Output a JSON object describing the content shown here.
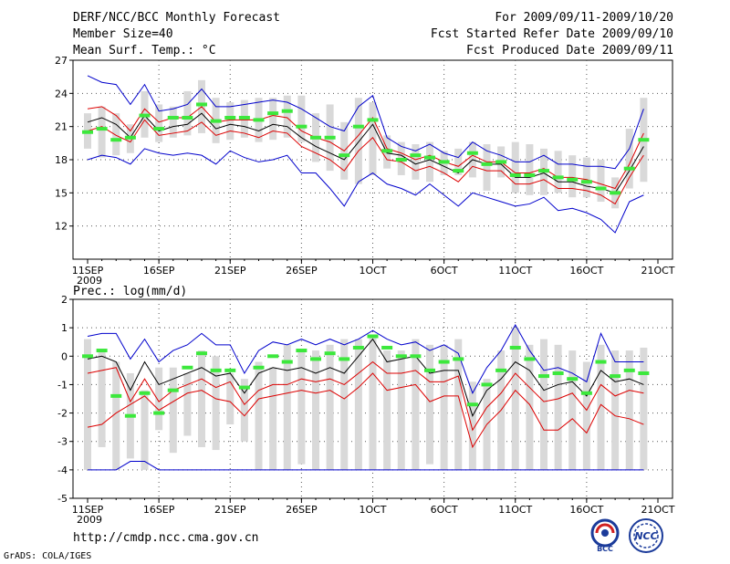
{
  "header": {
    "title": "DERF/NCC/BCC Monthly Forecast",
    "member_size": "Member Size=40",
    "variable": "Mean Surf. Temp.: °C",
    "forecast_period": "For 2009/09/11-2009/10/20",
    "started_date": "Fcst Started Refer Date 2009/09/10",
    "produced_date": "Fcst Produced Date 2009/09/11"
  },
  "footer": {
    "url": "http://cmdp.ncc.cma.gov.cn",
    "credit": "GrADS: COLA/IGES",
    "logo_bcc": "BCC",
    "logo_ncc": "NCC"
  },
  "colors": {
    "box": "#d9d9d9",
    "mean": "#3ce83c",
    "max": "#0000cc",
    "min_line": "#dd0000",
    "median": "#000000",
    "grid": "#555555"
  },
  "chart_data": [
    {
      "type": "box",
      "title": "Mean Surf. Temp.: °C",
      "ylim": [
        9,
        27
      ],
      "yticks": [
        12,
        15,
        18,
        21,
        24,
        27
      ],
      "xlabels": [
        "11SEP",
        "16SEP",
        "21SEP",
        "26SEP",
        "1OCT",
        "6OCT",
        "11OCT",
        "16OCT",
        "21OCT"
      ],
      "xlabel_year": "2009",
      "days": [
        1,
        2,
        3,
        4,
        5,
        6,
        7,
        8,
        9,
        10,
        11,
        12,
        13,
        14,
        15,
        16,
        17,
        18,
        19,
        20,
        21,
        22,
        23,
        24,
        25,
        26,
        27,
        28,
        29,
        30,
        31,
        32,
        33,
        34,
        35,
        36,
        37,
        38,
        39,
        40
      ],
      "box_low": [
        19.0,
        18.2,
        18.4,
        18.6,
        20.0,
        19.6,
        20.0,
        20.2,
        20.4,
        19.5,
        19.8,
        20.0,
        19.6,
        19.8,
        20.0,
        19.6,
        17.8,
        17.0,
        16.2,
        15.8,
        16.6,
        17.2,
        16.6,
        16.2,
        16.0,
        16.6,
        16.6,
        16.4,
        15.2,
        16.4,
        15.0,
        14.8,
        14.8,
        15.0,
        14.6,
        14.6,
        14.2,
        13.6,
        15.4,
        16.0
      ],
      "box_high": [
        22.2,
        22.8,
        22.2,
        21.2,
        24.2,
        23.0,
        22.8,
        24.2,
        25.2,
        23.6,
        23.2,
        23.4,
        23.6,
        23.6,
        23.8,
        23.8,
        22.2,
        23.0,
        21.4,
        23.6,
        23.2,
        20.2,
        19.6,
        19.4,
        19.6,
        18.8,
        19.0,
        19.6,
        19.4,
        19.2,
        19.6,
        19.4,
        19.0,
        18.8,
        18.4,
        18.2,
        18.0,
        16.4,
        20.8,
        23.6
      ],
      "mean": [
        20.5,
        20.8,
        19.8,
        20.0,
        22.0,
        20.8,
        21.8,
        21.8,
        23.0,
        21.5,
        21.8,
        21.8,
        21.6,
        22.2,
        22.4,
        21.0,
        20.0,
        20.0,
        18.4,
        21.0,
        21.6,
        18.8,
        18.0,
        18.4,
        18.2,
        17.8,
        17.0,
        18.6,
        17.6,
        17.8,
        16.6,
        16.6,
        17.0,
        16.4,
        16.2,
        16.0,
        15.4,
        15.0,
        17.2,
        19.8
      ],
      "median": [
        21.4,
        21.8,
        21.2,
        20.0,
        22.0,
        20.6,
        21.0,
        21.2,
        22.2,
        20.8,
        21.2,
        21.0,
        20.6,
        21.2,
        21.0,
        20.0,
        19.2,
        18.6,
        18.0,
        19.6,
        21.2,
        18.6,
        18.4,
        17.6,
        18.0,
        17.4,
        16.8,
        18.0,
        17.6,
        17.6,
        16.4,
        16.4,
        16.8,
        16.0,
        16.0,
        15.6,
        15.4,
        15.0,
        17.0,
        19.2
      ],
      "max": [
        25.6,
        25.0,
        24.8,
        23.0,
        24.8,
        22.4,
        22.6,
        23.0,
        24.4,
        22.8,
        22.8,
        23.0,
        23.2,
        23.4,
        23.2,
        22.6,
        21.8,
        21.0,
        20.6,
        22.8,
        23.8,
        20.0,
        19.2,
        18.8,
        19.4,
        18.6,
        18.2,
        19.6,
        18.8,
        18.4,
        17.8,
        17.8,
        18.4,
        17.6,
        17.6,
        17.4,
        17.4,
        17.2,
        19.0,
        22.6
      ],
      "upper": [
        22.6,
        22.8,
        22.0,
        20.6,
        22.6,
        21.4,
        21.8,
        21.8,
        22.8,
        21.4,
        21.6,
        21.6,
        21.6,
        22.0,
        21.8,
        20.6,
        20.0,
        19.6,
        18.8,
        20.2,
        21.8,
        19.0,
        18.6,
        18.0,
        18.4,
        17.8,
        17.4,
        18.4,
        17.8,
        17.8,
        16.8,
        16.8,
        17.2,
        16.4,
        16.4,
        16.2,
        15.8,
        15.4,
        17.6,
        20.4
      ],
      "lower": [
        20.6,
        21.0,
        20.2,
        19.6,
        21.6,
        20.2,
        20.4,
        20.6,
        21.4,
        20.2,
        20.6,
        20.4,
        20.0,
        20.6,
        20.4,
        19.2,
        18.6,
        18.0,
        17.0,
        18.8,
        20.0,
        18.0,
        17.8,
        17.0,
        17.4,
        16.8,
        16.0,
        17.4,
        17.0,
        17.0,
        15.8,
        15.8,
        16.2,
        15.4,
        15.4,
        15.2,
        14.8,
        14.0,
        16.4,
        18.4
      ],
      "min": [
        18.0,
        18.4,
        18.2,
        17.6,
        19.0,
        18.6,
        18.4,
        18.6,
        18.4,
        17.6,
        18.8,
        18.2,
        17.8,
        18.0,
        18.4,
        16.8,
        16.8,
        15.4,
        13.8,
        16.0,
        16.8,
        15.8,
        15.4,
        14.8,
        15.8,
        14.8,
        13.8,
        15.0,
        14.6,
        14.2,
        13.8,
        14.0,
        14.6,
        13.4,
        13.6,
        13.2,
        12.6,
        11.4,
        14.2,
        14.8
      ]
    },
    {
      "type": "box",
      "title": "Prec.: log(mm/d)",
      "ylim": [
        -5,
        2
      ],
      "yticks": [
        -5,
        -4,
        -3,
        -2,
        -1,
        0,
        1,
        2
      ],
      "xlabels": [
        "11SEP",
        "16SEP",
        "21SEP",
        "26SEP",
        "1OCT",
        "6OCT",
        "11OCT",
        "16OCT",
        "21OCT"
      ],
      "xlabel_year": "2009",
      "days": [
        1,
        2,
        3,
        4,
        5,
        6,
        7,
        8,
        9,
        10,
        11,
        12,
        13,
        14,
        15,
        16,
        17,
        18,
        19,
        20,
        21,
        22,
        23,
        24,
        25,
        26,
        27,
        28,
        29,
        30,
        31,
        32,
        33,
        34,
        35,
        36,
        37,
        38,
        39,
        40
      ],
      "box_low": [
        -4.0,
        -3.2,
        -4.0,
        -3.6,
        -4.0,
        -2.6,
        -3.4,
        -2.8,
        -3.2,
        -3.3,
        -2.4,
        -3.0,
        -4.0,
        -4.0,
        -4.0,
        -3.8,
        -4.0,
        -4.0,
        -4.0,
        -4.0,
        -4.0,
        -4.0,
        -4.0,
        -4.0,
        -3.8,
        -4.0,
        -4.0,
        -4.0,
        -4.0,
        -4.0,
        -4.0,
        -4.0,
        -4.0,
        -4.0,
        -4.0,
        -4.0,
        -4.0,
        -4.0,
        -4.0,
        -4.0
      ],
      "box_high": [
        0.6,
        0.2,
        -0.2,
        -0.6,
        -1.2,
        -0.4,
        -0.4,
        -0.6,
        0.2,
        0.0,
        -0.6,
        -0.8,
        -0.2,
        -0.4,
        0.4,
        0.2,
        0.2,
        0.4,
        0.6,
        0.6,
        0.7,
        0.2,
        0.2,
        0.6,
        0.4,
        0.4,
        0.6,
        -0.9,
        -0.8,
        0.2,
        1.0,
        0.4,
        0.6,
        0.4,
        0.2,
        -0.2,
        0.4,
        0.2,
        0.2,
        0.3
      ],
      "mean": [
        0.0,
        0.2,
        -1.4,
        -2.1,
        -1.3,
        -2.0,
        -1.2,
        -0.4,
        0.1,
        -0.5,
        -0.5,
        -1.1,
        -0.4,
        0.0,
        -0.2,
        0.2,
        -0.1,
        0.1,
        -0.1,
        0.3,
        0.7,
        0.3,
        0.0,
        0.0,
        -0.5,
        -0.2,
        -0.1,
        -1.7,
        -1.0,
        -0.5,
        0.3,
        -0.1,
        -0.7,
        -0.6,
        -0.8,
        -1.3,
        -0.2,
        -0.7,
        -0.5,
        -0.6
      ],
      "median": [
        -0.1,
        0.0,
        -0.2,
        -1.2,
        -0.2,
        -1.0,
        -0.8,
        -0.6,
        -0.4,
        -0.7,
        -0.6,
        -1.3,
        -0.6,
        -0.4,
        -0.5,
        -0.4,
        -0.6,
        -0.4,
        -0.6,
        0.0,
        0.6,
        -0.2,
        -0.1,
        0.0,
        -0.6,
        -0.5,
        -0.5,
        -2.1,
        -1.2,
        -0.8,
        -0.2,
        -0.5,
        -1.2,
        -1.0,
        -0.9,
        -1.4,
        -0.5,
        -0.9,
        -0.8,
        -1.0
      ],
      "max": [
        0.7,
        0.8,
        0.8,
        -0.1,
        0.6,
        -0.2,
        0.2,
        0.4,
        0.8,
        0.4,
        0.4,
        -0.6,
        0.2,
        0.5,
        0.4,
        0.6,
        0.4,
        0.6,
        0.4,
        0.6,
        0.9,
        0.6,
        0.4,
        0.5,
        0.2,
        0.4,
        0.1,
        -1.3,
        -0.4,
        0.2,
        1.1,
        0.2,
        -0.5,
        -0.4,
        -0.6,
        -0.9,
        0.8,
        -0.2,
        -0.2,
        -0.2
      ],
      "upper": [
        -0.6,
        -0.5,
        -0.4,
        -1.6,
        -0.8,
        -1.6,
        -1.2,
        -1.0,
        -0.8,
        -1.1,
        -0.9,
        -1.7,
        -1.2,
        -1.0,
        -1.0,
        -0.8,
        -0.9,
        -0.8,
        -1.0,
        -0.6,
        -0.2,
        -0.6,
        -0.6,
        -0.5,
        -0.9,
        -0.9,
        -0.7,
        -2.6,
        -1.8,
        -1.3,
        -0.6,
        -1.1,
        -1.6,
        -1.5,
        -1.3,
        -1.9,
        -1.0,
        -1.4,
        -1.2,
        -1.3
      ],
      "lower": [
        -2.5,
        -2.4,
        -2.0,
        -1.7,
        -1.4,
        -1.9,
        -1.6,
        -1.3,
        -1.2,
        -1.5,
        -1.6,
        -2.1,
        -1.5,
        -1.4,
        -1.3,
        -1.2,
        -1.3,
        -1.2,
        -1.5,
        -1.1,
        -0.6,
        -1.2,
        -1.1,
        -1.0,
        -1.6,
        -1.4,
        -1.4,
        -3.2,
        -2.4,
        -1.9,
        -1.2,
        -1.7,
        -2.6,
        -2.6,
        -2.2,
        -2.7,
        -1.7,
        -2.1,
        -2.2,
        -2.4
      ],
      "min": [
        -4.0,
        -4.0,
        -4.0,
        -3.7,
        -3.7,
        -4.0,
        -4.0,
        -4.0,
        -4.0,
        -4.0,
        -4.0,
        -4.0,
        -4.0,
        -4.0,
        -4.0,
        -4.0,
        -4.0,
        -4.0,
        -4.0,
        -4.0,
        -4.0,
        -4.0,
        -4.0,
        -4.0,
        -4.0,
        -4.0,
        -4.0,
        -4.0,
        -4.0,
        -4.0,
        -4.0,
        -4.0,
        -4.0,
        -4.0,
        -4.0,
        -4.0,
        -4.0,
        -4.0,
        -4.0,
        -4.0
      ]
    }
  ]
}
